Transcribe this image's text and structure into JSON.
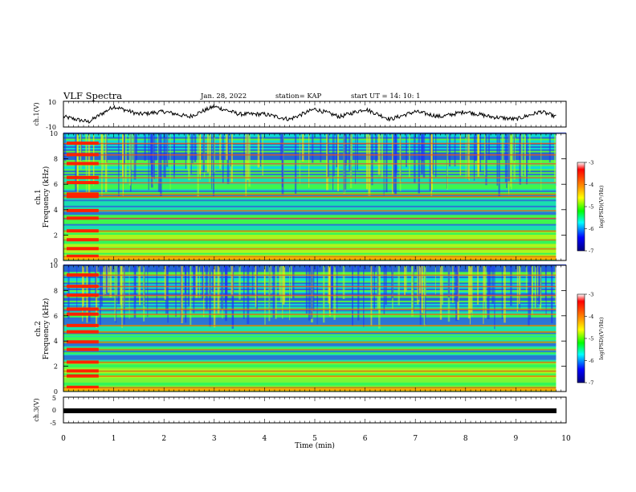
{
  "header": {
    "title": "VLF Spectra",
    "date": "Jan. 28, 2022",
    "station": "station= KAP",
    "start_ut": "start  UT =   14: 10: 1"
  },
  "colorbar": {
    "label": "log(PSD)(V²/Hz)",
    "ticks": [
      "-3",
      "-4",
      "-5",
      "-6",
      "-7"
    ],
    "colors": [
      "#ffffff",
      "#ff0000",
      "#ffaa00",
      "#ffff00",
      "#00ff00",
      "#00ffff",
      "#0000ff",
      "#000080"
    ]
  },
  "chart_data": [
    {
      "type": "line",
      "ylabel": "ch.1(V)",
      "ylim": [
        -10,
        10
      ],
      "y_ticks": [
        "10",
        "-10"
      ],
      "xlim": [
        0,
        10
      ],
      "description_values": {
        "x_min": [
          0,
          0.5,
          1,
          1.5,
          2,
          2.5,
          3,
          3.5,
          4,
          4.5,
          5,
          5.5,
          6,
          6.5,
          7,
          7.5,
          8,
          8.5,
          9,
          9.5,
          9.8
        ],
        "y_V": [
          -2,
          -6,
          6,
          0,
          2,
          -2,
          6,
          0,
          0,
          -4,
          4,
          -2,
          4,
          -4,
          2,
          -2,
          2,
          -2,
          -4,
          2,
          -2
        ]
      }
    },
    {
      "type": "heatmap",
      "ylabel": "ch.1\nFrequency (kHz)",
      "y_ticks": [
        "10",
        "8",
        "6",
        "4",
        "2",
        "0"
      ],
      "ylim": [
        0,
        10
      ],
      "xlim": [
        0,
        10
      ],
      "hot_bands_kHz": [
        0.3,
        0.9,
        1.6,
        2.3,
        3.3,
        3.9,
        5.0,
        5.2,
        6.1,
        6.5,
        7.6,
        8.3,
        9.2
      ],
      "colorbar_range": [
        -7,
        -3
      ]
    },
    {
      "type": "heatmap",
      "ylabel": "ch.2\nFrequency (kHz)",
      "y_ticks": [
        "10",
        "8",
        "6",
        "4",
        "2",
        "0"
      ],
      "ylim": [
        0,
        10
      ],
      "xlim": [
        0,
        10
      ],
      "hot_bands_kHz": [
        0.3,
        1.2,
        1.6,
        2.3,
        3.3,
        3.9,
        4.7,
        5.2,
        6.1,
        6.5,
        7.6,
        8.3,
        9.2
      ],
      "colorbar_range": [
        -7,
        -3
      ]
    },
    {
      "type": "line",
      "ylabel": "ch.3(V)",
      "ylim": [
        -5,
        5
      ],
      "y_ticks": [
        "5",
        "0",
        "-5"
      ],
      "xlim": [
        0,
        10
      ],
      "x": [
        0,
        9.8
      ],
      "y": [
        0,
        0
      ]
    }
  ],
  "x_axis": {
    "label": "Time  (min)",
    "ticks": [
      "0",
      "1",
      "2",
      "3",
      "4",
      "5",
      "6",
      "7",
      "8",
      "9",
      "10"
    ]
  }
}
